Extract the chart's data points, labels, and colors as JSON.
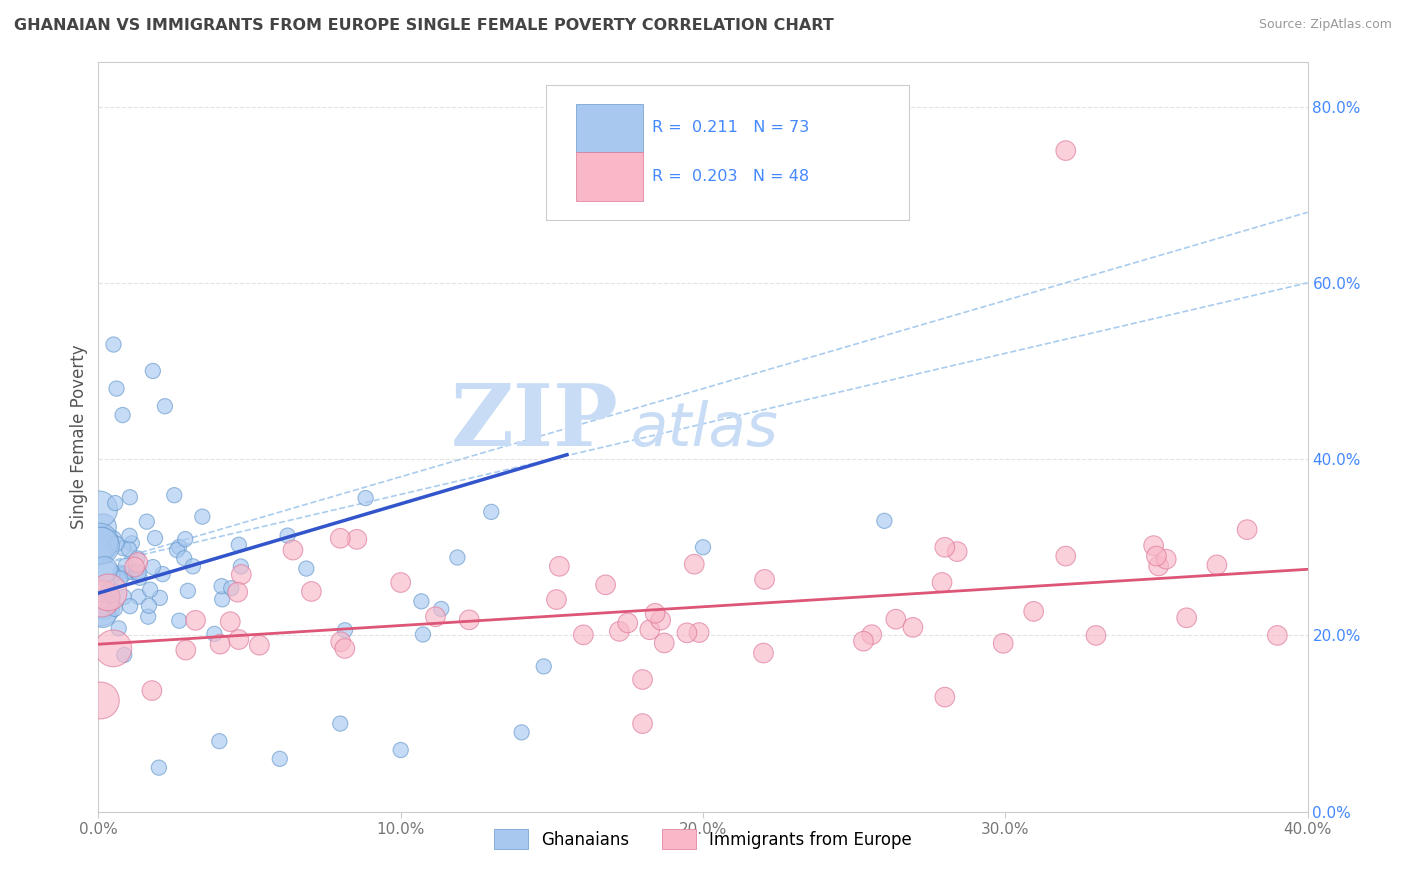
{
  "title": "GHANAIAN VS IMMIGRANTS FROM EUROPE SINGLE FEMALE POVERTY CORRELATION CHART",
  "source": "Source: ZipAtlas.com",
  "ylabel": "Single Female Poverty",
  "xlim": [
    0.0,
    0.4
  ],
  "ylim": [
    0.0,
    0.85
  ],
  "xticks": [
    0.0,
    0.1,
    0.2,
    0.3,
    0.4
  ],
  "yticks": [
    0.0,
    0.2,
    0.4,
    0.6,
    0.8
  ],
  "series1_name": "Ghanaians",
  "series1_color": "#a8c8f0",
  "series1_edge_color": "#6699cc",
  "series1_line_color": "#3355cc",
  "series1_R": 0.211,
  "series1_N": 73,
  "series2_name": "Immigrants from Europe",
  "series2_color": "#f8b8c8",
  "series2_edge_color": "#dd7799",
  "series2_line_color": "#dd5577",
  "series2_R": 0.203,
  "series2_N": 48,
  "legend_text_color": "#4488ff",
  "watermark_zip": "ZIP",
  "watermark_atlas": "atlas",
  "watermark_color": "#c8ddf5",
  "background_color": "#ffffff",
  "grid_color": "#e0e0e0",
  "title_color": "#444444",
  "tick_color": "#4488ff",
  "ylabel_color": "#555555",
  "right_ytick_color": "#4488ff",
  "ci_line_color": "#aaccee",
  "ci_line_style": "--"
}
